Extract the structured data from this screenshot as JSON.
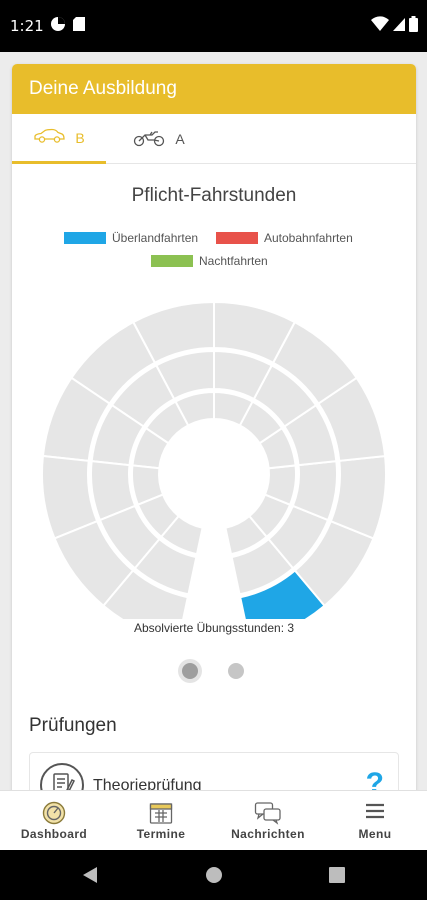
{
  "status_bar": {
    "time": "1:21",
    "icons": [
      "circle-half-icon",
      "sim-card-icon",
      "wifi-icon",
      "signal-icon",
      "battery-icon"
    ]
  },
  "header": {
    "title": "Deine Ausbildung"
  },
  "tabs": [
    {
      "label": "B",
      "icon": "car-icon",
      "active": true
    },
    {
      "label": "A",
      "icon": "motorcycle-icon",
      "active": false
    }
  ],
  "chart": {
    "title": "Pflicht-Fahrstunden",
    "caption": "Absolvierte Übungsstunden: 3"
  },
  "chart_data": {
    "type": "pie",
    "title": "Pflicht-Fahrstunden",
    "legend": [
      {
        "name": "Überlandfahrten",
        "color": "#1fa6e6"
      },
      {
        "name": "Autobahnfahrten",
        "color": "#e8524a"
      },
      {
        "name": "Nachtfahrten",
        "color": "#8cc152"
      }
    ],
    "legend_position": "top",
    "rings": {
      "outer": {
        "categories": [
          "Überlandfahrten",
          "Überlandfahrten",
          "Überlandfahrten",
          "Überlandfahrten",
          "Überlandfahrten",
          "Autobahnfahrten",
          "Autobahnfahrten",
          "Autobahnfahrten",
          "Autobahnfahrten",
          "Nachtfahrten",
          "Nachtfahrten",
          "Nachtfahrten"
        ],
        "completed": [
          1,
          0,
          0,
          0,
          0,
          0,
          0,
          0,
          0,
          0,
          0,
          0
        ]
      },
      "middle": {
        "categories": [
          "Überlandfahrten",
          "Überlandfahrten",
          "Überlandfahrten",
          "Überlandfahrten",
          "Überlandfahrten",
          "Autobahnfahrten",
          "Autobahnfahrten",
          "Autobahnfahrten",
          "Autobahnfahrten",
          "Nachtfahrten",
          "Nachtfahrten",
          "Nachtfahrten"
        ],
        "completed": [
          0,
          0,
          0,
          0,
          0,
          0,
          0,
          0,
          0,
          0,
          0,
          0
        ]
      },
      "inner": {
        "categories": [
          "Überlandfahrten",
          "Überlandfahrten",
          "Überlandfahrten",
          "Überlandfahrten",
          "Überlandfahrten",
          "Autobahnfahrten",
          "Autobahnfahrten",
          "Autobahnfahrten",
          "Autobahnfahrten",
          "Nachtfahrten",
          "Nachtfahrten",
          "Nachtfahrten"
        ],
        "completed": [
          0,
          0,
          0,
          0,
          0,
          0,
          0,
          0,
          0,
          0,
          0,
          0
        ]
      }
    },
    "completed_lessons": 3,
    "colors": {
      "empty": "#e6e6e6",
      "completed": "#1fa6e6",
      "separator": "#ffffff"
    }
  },
  "pager": {
    "pages": 2,
    "active_index": 0
  },
  "exams": {
    "title": "Prüfungen",
    "items": [
      {
        "label": "Theorieprüfung",
        "status": "?",
        "icon": "checklist-icon"
      }
    ]
  },
  "bottom_nav": [
    {
      "label": "Dashboard",
      "icon": "speedometer-icon"
    },
    {
      "label": "Termine",
      "icon": "calendar-icon"
    },
    {
      "label": "Nachrichten",
      "icon": "chat-bubbles-icon"
    },
    {
      "label": "Menu",
      "icon": "hamburger-icon"
    }
  ],
  "system_nav": [
    "back-icon",
    "home-icon",
    "recents-icon"
  ]
}
